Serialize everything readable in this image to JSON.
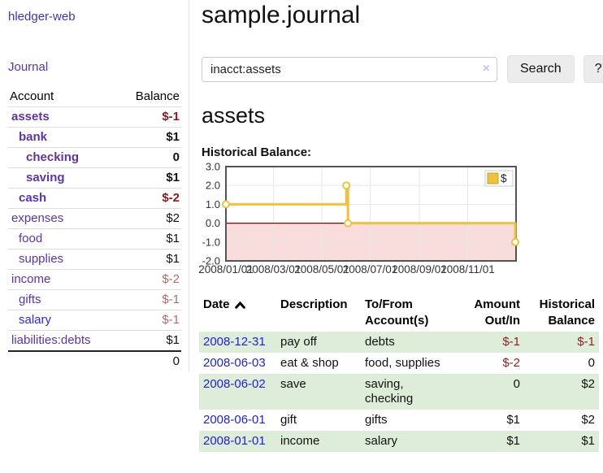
{
  "app": {
    "title": "hledger-web",
    "journal_link": "Journal"
  },
  "sidebar": {
    "header": {
      "account": "Account",
      "balance": "Balance"
    },
    "accounts": [
      {
        "name": "assets",
        "balance": "$-1",
        "indent": 0,
        "bold": true,
        "neg": "strong",
        "link": "visited"
      },
      {
        "name": "bank",
        "balance": "$1",
        "indent": 1,
        "bold": true,
        "neg": "none",
        "link": "visited"
      },
      {
        "name": "checking",
        "balance": "0",
        "indent": 2,
        "bold": true,
        "neg": "none",
        "link": "visited"
      },
      {
        "name": "saving",
        "balance": "$1",
        "indent": 2,
        "bold": true,
        "neg": "none",
        "link": "visited"
      },
      {
        "name": "cash",
        "balance": "$-2",
        "indent": 1,
        "bold": true,
        "neg": "strong",
        "link": "visited"
      },
      {
        "name": "expenses",
        "balance": "$2",
        "indent": 0,
        "bold": false,
        "neg": "none",
        "link": "visited"
      },
      {
        "name": "food",
        "balance": "$1",
        "indent": 1,
        "bold": false,
        "neg": "none",
        "link": "visited"
      },
      {
        "name": "supplies",
        "balance": "$1",
        "indent": 1,
        "bold": false,
        "neg": "none",
        "link": "visited"
      },
      {
        "name": "income",
        "balance": "$-2",
        "indent": 0,
        "bold": false,
        "neg": "soft",
        "link": "visited"
      },
      {
        "name": "gifts",
        "balance": "$-1",
        "indent": 1,
        "bold": false,
        "neg": "soft",
        "link": "visited"
      },
      {
        "name": "salary",
        "balance": "$-1",
        "indent": 1,
        "bold": false,
        "neg": "soft",
        "link": "unvisited"
      },
      {
        "name": "liabilities:debts",
        "balance": "$1",
        "indent": 0,
        "bold": false,
        "neg": "none",
        "link": "visited"
      }
    ],
    "total": "0"
  },
  "main": {
    "title": "sample.journal",
    "search": {
      "value": "inacct:assets",
      "clear_icon": "×",
      "search_button": "Search",
      "help_button": "?"
    },
    "account_heading": "assets",
    "chart_heading": "Historical Balance:"
  },
  "chart_data": {
    "type": "line",
    "style": "step",
    "title": "Historical Balance",
    "legend": {
      "position": "top-right",
      "entries": [
        {
          "label": "$",
          "color": "#edc240"
        }
      ]
    },
    "xlim": [
      "2008-01-01",
      "2009-01-01"
    ],
    "ylim": [
      -2,
      3
    ],
    "y_ticks": [
      {
        "label": "3.0",
        "value": 3
      },
      {
        "label": "2.0",
        "value": 2
      },
      {
        "label": "1.0",
        "value": 1
      },
      {
        "label": "0.0",
        "value": 0
      },
      {
        "label": "-1.0",
        "value": -1
      },
      {
        "label": "-2.0",
        "value": -2
      }
    ],
    "x_ticks": [
      {
        "label": "2008/01/01",
        "date": "2008-01-01"
      },
      {
        "label": "2008/03/01",
        "date": "2008-03-01"
      },
      {
        "label": "2008/05/01",
        "date": "2008-05-01"
      },
      {
        "label": "2008/07/01",
        "date": "2008-07-01"
      },
      {
        "label": "2008/09/01",
        "date": "2008-09-01"
      },
      {
        "label": "2008/11/01",
        "date": "2008-11-01"
      }
    ],
    "series": [
      {
        "name": "$",
        "color": "#edc240",
        "points": [
          [
            "2008-01-01",
            1.0
          ],
          [
            "2008-06-01",
            2.0
          ],
          [
            "2008-06-03",
            0.0
          ],
          [
            "2008-12-31",
            -1.0
          ]
        ]
      }
    ],
    "grid": true,
    "negative_region_color": "#f9dcdc",
    "zero_line_color": "#990000"
  },
  "register": {
    "columns": [
      "Date",
      "Description",
      "To/From Account(s)",
      "Amount Out/In",
      "Historical Balance"
    ],
    "sort": {
      "column": "Date",
      "direction": "asc"
    },
    "rows": [
      {
        "date": "2008-12-31",
        "description": "pay off",
        "tofrom": "debts",
        "amount": "$-1",
        "balance": "$-1",
        "amount_neg": true,
        "balance_neg": true
      },
      {
        "date": "2008-06-03",
        "description": "eat & shop",
        "tofrom": "food, supplies",
        "amount": "$-2",
        "balance": "0",
        "amount_neg": true,
        "balance_neg": false
      },
      {
        "date": "2008-06-02",
        "description": "save",
        "tofrom": "saving, checking",
        "amount": "0",
        "balance": "$2",
        "amount_neg": false,
        "balance_neg": false
      },
      {
        "date": "2008-06-01",
        "description": "gift",
        "tofrom": "gifts",
        "amount": "$1",
        "balance": "$2",
        "amount_neg": false,
        "balance_neg": false
      },
      {
        "date": "2008-01-01",
        "description": "income",
        "tofrom": "salary",
        "amount": "$1",
        "balance": "$1",
        "amount_neg": false,
        "balance_neg": false
      }
    ]
  }
}
